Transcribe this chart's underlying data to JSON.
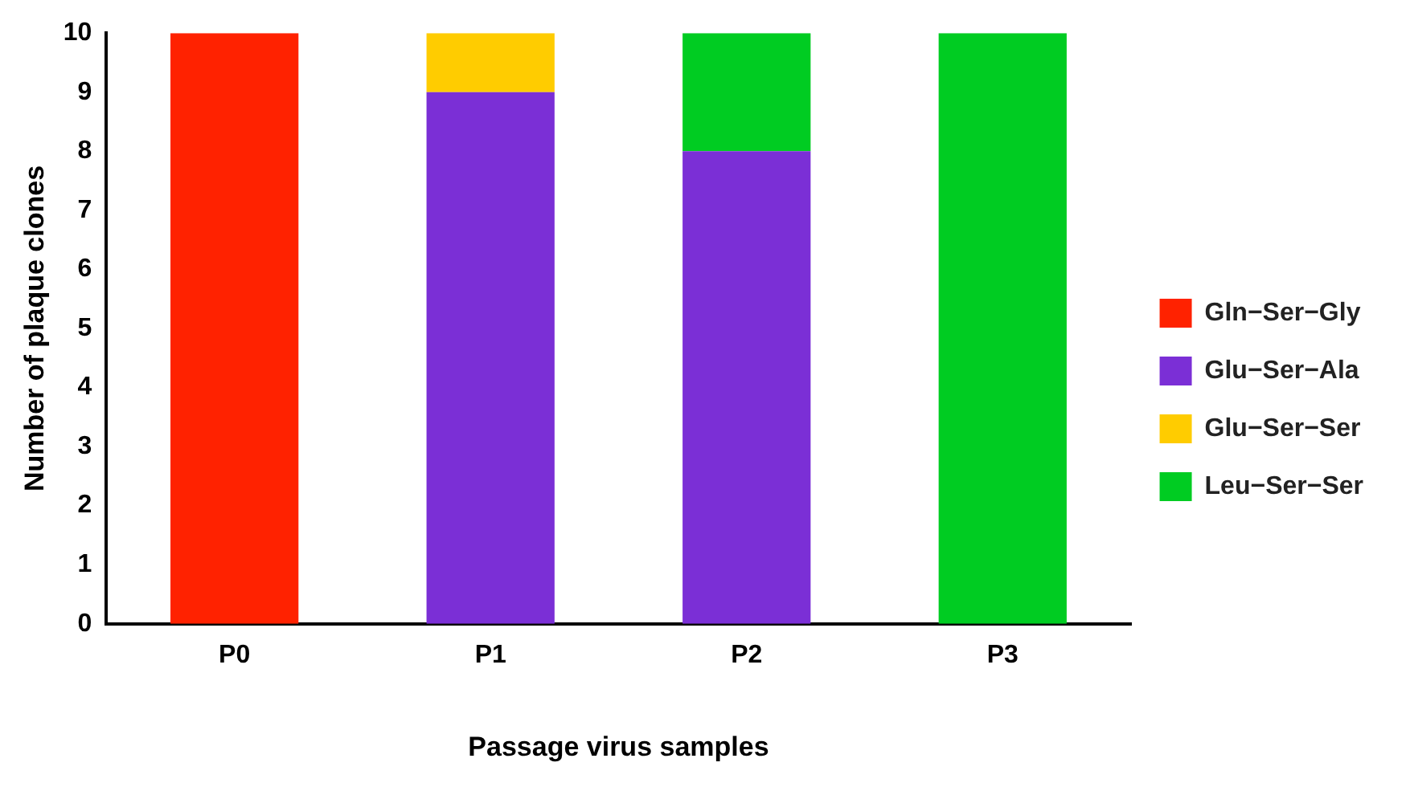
{
  "chart_data": {
    "type": "bar",
    "stacked": true,
    "xlabel": "Passage virus samples",
    "ylabel": "Number of plaque clones",
    "categories": [
      "P0",
      "P1",
      "P2",
      "P3"
    ],
    "series": [
      {
        "name": "Gln−Ser−Gly",
        "color": "#ff2200",
        "values": [
          10,
          0,
          0,
          0
        ]
      },
      {
        "name": "Glu−Ser−Ala",
        "color": "#7b2fd6",
        "values": [
          0,
          9,
          8,
          0
        ]
      },
      {
        "name": "Glu−Ser−Ser",
        "color": "#ffcc00",
        "values": [
          0,
          1,
          0,
          0
        ]
      },
      {
        "name": "Leu−Ser−Ser",
        "color": "#00cc22",
        "values": [
          0,
          0,
          2,
          10
        ]
      }
    ],
    "ylim": [
      0,
      10
    ],
    "yticks": [
      0,
      1,
      2,
      3,
      4,
      5,
      6,
      7,
      8,
      9,
      10
    ],
    "grid": false,
    "legend": "right"
  }
}
